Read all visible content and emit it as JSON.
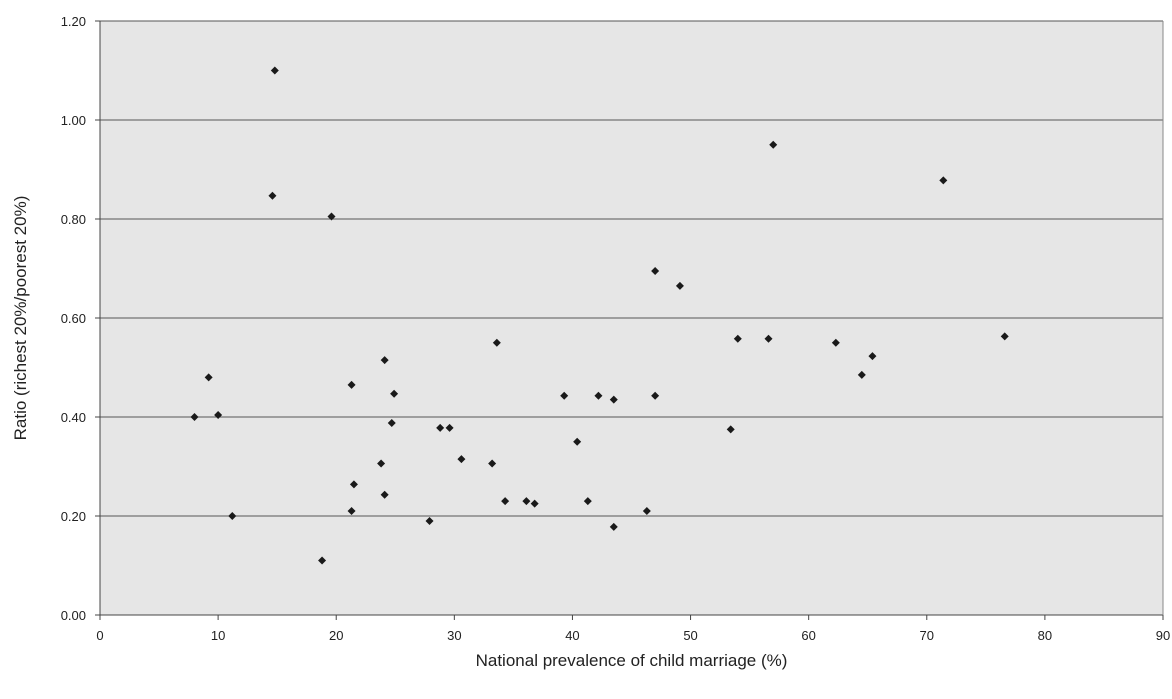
{
  "chart_data": {
    "type": "scatter",
    "title": "",
    "xlabel": "National prevalence of child marriage (%)",
    "ylabel": "Ratio (richest 20%/poorest 20%)",
    "xlim": [
      0,
      90
    ],
    "ylim": [
      0,
      1.2
    ],
    "x_ticks": [
      0,
      10,
      20,
      30,
      40,
      50,
      60,
      70,
      80,
      90
    ],
    "y_ticks": [
      0,
      0.2,
      0.4,
      0.6,
      0.8,
      1.0,
      1.2
    ],
    "x_tick_labels": [
      "0",
      "10",
      "20",
      "30",
      "40",
      "50",
      "60",
      "70",
      "80",
      "90"
    ],
    "y_tick_labels": [
      "0.00",
      "0.20",
      "0.40",
      "0.60",
      "0.80",
      "1.00",
      "1.20"
    ],
    "grid": "horizontal",
    "legend": "none",
    "marker": "diamond",
    "colors": {
      "plot_background": "#e6e6e6",
      "marker": "#1a1a1a",
      "gridline": "#555555"
    },
    "points": [
      [
        8.0,
        0.4
      ],
      [
        9.2,
        0.48
      ],
      [
        10.0,
        0.404
      ],
      [
        11.2,
        0.2
      ],
      [
        14.6,
        0.847
      ],
      [
        14.8,
        1.1
      ],
      [
        18.8,
        0.11
      ],
      [
        19.6,
        0.805
      ],
      [
        21.3,
        0.465
      ],
      [
        21.3,
        0.21
      ],
      [
        21.5,
        0.264
      ],
      [
        23.8,
        0.306
      ],
      [
        24.1,
        0.515
      ],
      [
        24.1,
        0.243
      ],
      [
        24.7,
        0.388
      ],
      [
        24.9,
        0.447
      ],
      [
        27.9,
        0.19
      ],
      [
        28.8,
        0.378
      ],
      [
        29.6,
        0.378
      ],
      [
        30.6,
        0.315
      ],
      [
        33.2,
        0.306
      ],
      [
        33.6,
        0.55
      ],
      [
        34.3,
        0.23
      ],
      [
        36.1,
        0.23
      ],
      [
        36.8,
        0.225
      ],
      [
        39.3,
        0.443
      ],
      [
        40.4,
        0.35
      ],
      [
        41.3,
        0.23
      ],
      [
        42.2,
        0.443
      ],
      [
        43.5,
        0.435
      ],
      [
        43.5,
        0.178
      ],
      [
        46.3,
        0.21
      ],
      [
        47.0,
        0.695
      ],
      [
        47.0,
        0.443
      ],
      [
        49.1,
        0.665
      ],
      [
        53.4,
        0.375
      ],
      [
        54.0,
        0.558
      ],
      [
        56.6,
        0.558
      ],
      [
        57.0,
        0.95
      ],
      [
        62.3,
        0.55
      ],
      [
        64.5,
        0.485
      ],
      [
        65.4,
        0.523
      ],
      [
        71.4,
        0.878
      ],
      [
        76.6,
        0.563
      ]
    ]
  }
}
